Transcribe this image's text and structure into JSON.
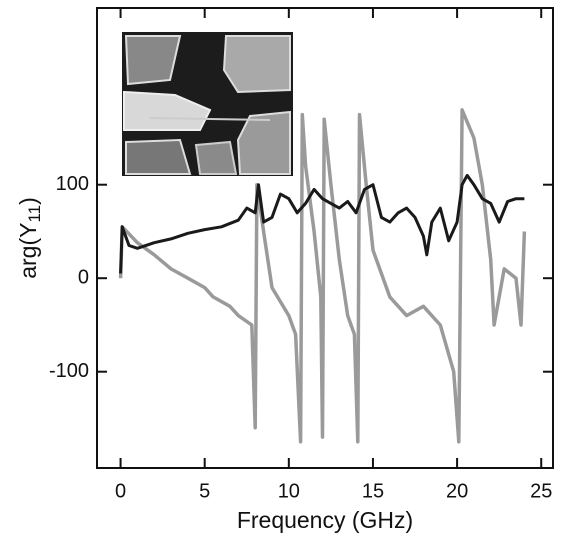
{
  "chart_data": {
    "type": "line",
    "xlabel": "Frequency (GHz)",
    "ylabel_parts": [
      "arg(Y",
      "11",
      ")"
    ],
    "xlim": [
      -1.4,
      25.7
    ],
    "ylim": [
      -203,
      289
    ],
    "xticks": [
      0,
      5,
      10,
      15,
      20,
      25
    ],
    "yticks": [
      -100,
      0,
      100
    ],
    "series": [
      {
        "color": "#1a1a1a",
        "x": [
          0,
          0.1,
          0.5,
          1,
          2,
          3,
          4,
          5,
          6,
          7,
          7.5,
          8,
          8.2,
          8.5,
          9,
          9.5,
          10,
          10.5,
          11,
          11.5,
          12,
          12.5,
          13,
          13.5,
          14,
          14.5,
          15,
          15.5,
          16,
          16.5,
          17,
          17.5,
          18,
          18.2,
          18.5,
          19,
          19.5,
          20,
          20.3,
          20.6,
          21,
          21.5,
          22,
          22.5,
          23,
          23.5,
          24
        ],
        "values": [
          5,
          55,
          35,
          32,
          38,
          42,
          48,
          52,
          55,
          62,
          75,
          70,
          100,
          60,
          65,
          90,
          85,
          70,
          80,
          95,
          85,
          80,
          75,
          82,
          70,
          95,
          100,
          65,
          60,
          70,
          75,
          65,
          45,
          25,
          60,
          75,
          40,
          60,
          100,
          110,
          100,
          85,
          80,
          60,
          82,
          85,
          85
        ]
      },
      {
        "color": "#9a9a9a",
        "x": [
          0,
          0.1,
          1,
          2,
          3,
          4,
          5,
          5.5,
          6.5,
          7,
          7.8,
          8,
          8.1,
          8.5,
          9,
          10,
          10.4,
          10.7,
          10.8,
          11,
          11.5,
          11.9,
          12,
          12.1,
          12.5,
          13,
          13.5,
          13.9,
          14.1,
          14.2,
          14.6,
          15,
          16,
          17,
          18,
          19,
          19.8,
          20.1,
          20.3,
          21,
          21.5,
          22,
          22.2,
          22.8,
          23.5,
          23.8,
          24
        ],
        "values": [
          0,
          55,
          38,
          25,
          10,
          0,
          -10,
          -20,
          -30,
          -40,
          -50,
          -160,
          100,
          50,
          -10,
          -40,
          -60,
          -175,
          175,
          120,
          50,
          -20,
          -170,
          170,
          100,
          20,
          -40,
          -60,
          -175,
          175,
          100,
          30,
          -20,
          -40,
          -30,
          -50,
          -100,
          -175,
          180,
          150,
          100,
          20,
          -50,
          10,
          0,
          -50,
          50
        ]
      }
    ]
  }
}
